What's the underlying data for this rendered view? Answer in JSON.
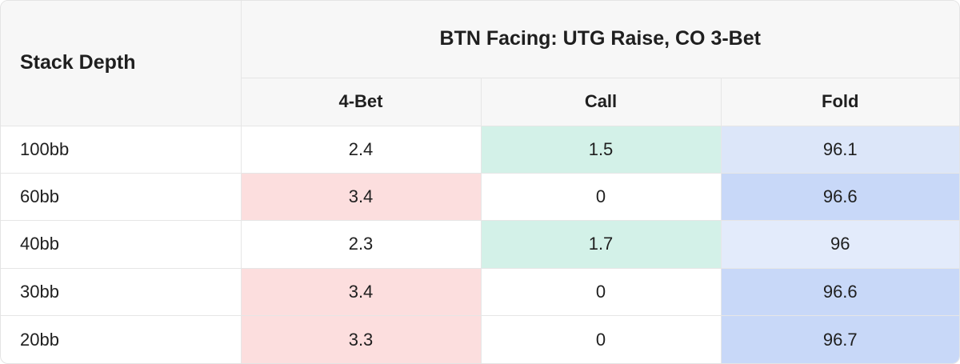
{
  "table": {
    "row_header": "Stack Depth",
    "group_header": "BTN Facing: UTG Raise, CO 3-Bet",
    "columns": [
      "4-Bet",
      "Call",
      "Fold"
    ],
    "rows": [
      {
        "label": "100bb",
        "values": [
          "2.4",
          "1.5",
          "96.1"
        ],
        "colors": [
          "#ffffff",
          "#d3f1e8",
          "#dce6f9"
        ]
      },
      {
        "label": "60bb",
        "values": [
          "3.4",
          "0",
          "96.6"
        ],
        "colors": [
          "#fcdede",
          "#ffffff",
          "#c8d8f8"
        ]
      },
      {
        "label": "40bb",
        "values": [
          "2.3",
          "1.7",
          "96"
        ],
        "colors": [
          "#ffffff",
          "#d3f1e8",
          "#e3ebfb"
        ]
      },
      {
        "label": "30bb",
        "values": [
          "3.4",
          "0",
          "96.6"
        ],
        "colors": [
          "#fcdede",
          "#ffffff",
          "#c8d8f8"
        ]
      },
      {
        "label": "20bb",
        "values": [
          "3.3",
          "0",
          "96.7"
        ],
        "colors": [
          "#fcdede",
          "#ffffff",
          "#c8d8f8"
        ]
      }
    ]
  }
}
